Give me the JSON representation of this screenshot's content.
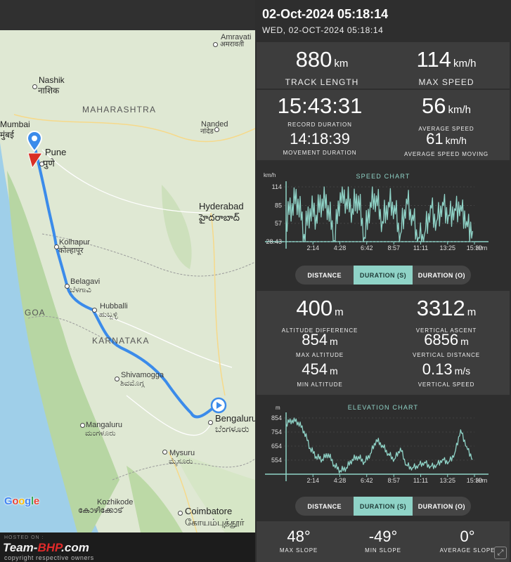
{
  "header": {
    "title": "02-Oct-2024 05:18:14",
    "subtitle": "WED, 02-OCT-2024 05:18:14"
  },
  "map": {
    "labels": {
      "amravati": "Amravati",
      "amravati_local": "अमरावती",
      "nashik": "Nashik",
      "nashik_local": "नाशिक",
      "maharashtra": "MAHARASHTRA",
      "mumbai": "Mumbai",
      "mumbai_local": "मुंबई",
      "pune": "Pune",
      "pune_local": "पुणे",
      "nanded": "Nanded",
      "nanded_local": "नांदेड",
      "hyderabad": "Hyderabad",
      "hyderabad_local": "హైదరాబాద్",
      "kolhapur": "Kolhapur",
      "kolhapur_local": "कोल्हापूर",
      "belagavi": "Belagavi",
      "belagavi_local": "ಬೆಳಗಾವಿ",
      "goa": "GOA",
      "hubballi": "Hubballi",
      "hubballi_local": "ಹುಬ್ಬಳ್ಳಿ",
      "karnataka": "KARNATAKA",
      "shivamogga": "Shivamogga",
      "shivamogga_local": "ಶಿವಮೊಗ್ಗ",
      "bengaluru": "Bengaluru",
      "bengaluru_local": "ಬೆಂಗಳೂರು",
      "mangaluru": "Mangaluru",
      "mangaluru_local": "ಮಂಗಳೂರು",
      "mysuru": "Mysuru",
      "mysuru_local": "ಮೈಸೂರು",
      "kozhikode": "Kozhikode",
      "kozhikode_local": "കോഴിക്കോട്",
      "coimbatore": "Coimbatore",
      "coimbatore_local": "கோயம்புத்தூர்"
    },
    "logo": "Google",
    "route_color": "#3b8bea"
  },
  "watermark": {
    "hosted": "HOSTED ON :",
    "brand_a": "Team-",
    "brand_b": "BHP",
    "brand_c": ".com",
    "copyright": "copyright respective owners"
  },
  "summary": {
    "track_length": {
      "value": "880",
      "unit": "km",
      "label": "TRACK LENGTH"
    },
    "max_speed": {
      "value": "114",
      "unit": "km/h",
      "label": "MAX SPEED"
    },
    "record_duration": {
      "value": "15:43:31",
      "label": "RECORD DURATION"
    },
    "average_speed": {
      "value": "56",
      "unit": "km/h",
      "label": "AVERAGE SPEED"
    },
    "movement_duration": {
      "value": "14:18:39",
      "label": "MOVEMENT DURATION"
    },
    "average_speed_moving": {
      "value": "61",
      "unit": "km/h",
      "label": "AVERAGE SPEED MOVING"
    }
  },
  "speed_chart": {
    "title": "SPEED CHART",
    "unit": "km/h",
    "y_ticks": [
      "114",
      "85",
      "57",
      "28.43"
    ],
    "x_ticks": [
      "2:14",
      "4:28",
      "6:42",
      "8:57",
      "11:11",
      "13:25",
      "15:39"
    ],
    "x_unit": "H:m"
  },
  "segments": {
    "distance": "DISTANCE",
    "duration_s": "DURATION (S)",
    "duration_o": "DURATION (O)"
  },
  "altitude": {
    "altitude_difference": {
      "value": "400",
      "unit": "m",
      "label": "ALTITUDE DIFFERENCE"
    },
    "vertical_ascent": {
      "value": "3312",
      "unit": "m",
      "label": "VERTICAL ASCENT"
    },
    "max_altitude": {
      "value": "854",
      "unit": "m",
      "label": "MAX ALTITUDE"
    },
    "vertical_distance": {
      "value": "6856",
      "unit": "m",
      "label": "VERTICAL DISTANCE"
    },
    "min_altitude": {
      "value": "454",
      "unit": "m",
      "label": "MIN ALTITUDE"
    },
    "vertical_speed": {
      "value": "0.13",
      "unit": "m/s",
      "label": "VERTICAL SPEED"
    }
  },
  "elevation_chart": {
    "title": "ELEVATION CHART",
    "unit": "m",
    "y_ticks": [
      "854",
      "754",
      "654",
      "554"
    ],
    "x_ticks": [
      "2:14",
      "4:28",
      "6:42",
      "8:57",
      "11:11",
      "13:25",
      "15:39"
    ],
    "x_unit": "H:m"
  },
  "slope": {
    "max_slope": {
      "value": "48°",
      "label": "MAX SLOPE"
    },
    "min_slope": {
      "value": "-49°",
      "label": "MIN SLOPE"
    },
    "average_slope": {
      "value": "0°",
      "label": "AVERAGE SLOPE"
    }
  },
  "chart_data": [
    {
      "type": "line",
      "title": "SPEED CHART",
      "ylabel": "km/h",
      "xlabel": "H:m",
      "x": [
        0,
        0.5,
        1.0,
        1.5,
        2.0,
        2.5,
        3.0,
        3.5,
        4.0,
        4.5,
        5.0,
        5.5,
        6.0,
        6.5,
        7.0,
        7.5,
        8.0,
        8.5,
        9.0,
        9.5,
        10.0,
        10.5,
        11.0,
        11.5,
        12.0,
        12.5,
        13.0,
        13.5,
        14.0,
        14.5,
        15.0,
        15.5
      ],
      "values": [
        60,
        88,
        95,
        40,
        80,
        70,
        95,
        85,
        30,
        105,
        95,
        80,
        100,
        35,
        90,
        100,
        60,
        90,
        85,
        40,
        95,
        70,
        35,
        40,
        85,
        60,
        90,
        70,
        80,
        85,
        60,
        45
      ],
      "ylim": [
        28.43,
        114
      ],
      "color": "#8fd3c7"
    },
    {
      "type": "line",
      "title": "ELEVATION CHART",
      "ylabel": "m",
      "xlabel": "H:m",
      "x": [
        0,
        0.5,
        1.0,
        1.5,
        2.0,
        2.5,
        3.0,
        3.5,
        4.0,
        4.5,
        5.0,
        5.5,
        6.0,
        6.5,
        7.0,
        7.5,
        8.0,
        8.5,
        9.0,
        9.5,
        10.0,
        10.5,
        11.0,
        11.5,
        12.0,
        12.5,
        13.0,
        13.5,
        14.0,
        14.5,
        15.0,
        15.5
      ],
      "values": [
        810,
        840,
        825,
        760,
        640,
        580,
        560,
        600,
        520,
        480,
        500,
        560,
        580,
        540,
        600,
        700,
        660,
        600,
        560,
        640,
        520,
        500,
        520,
        540,
        510,
        520,
        560,
        540,
        600,
        770,
        650,
        560
      ],
      "ylim": [
        454,
        854
      ],
      "color": "#8fd3c7"
    }
  ]
}
